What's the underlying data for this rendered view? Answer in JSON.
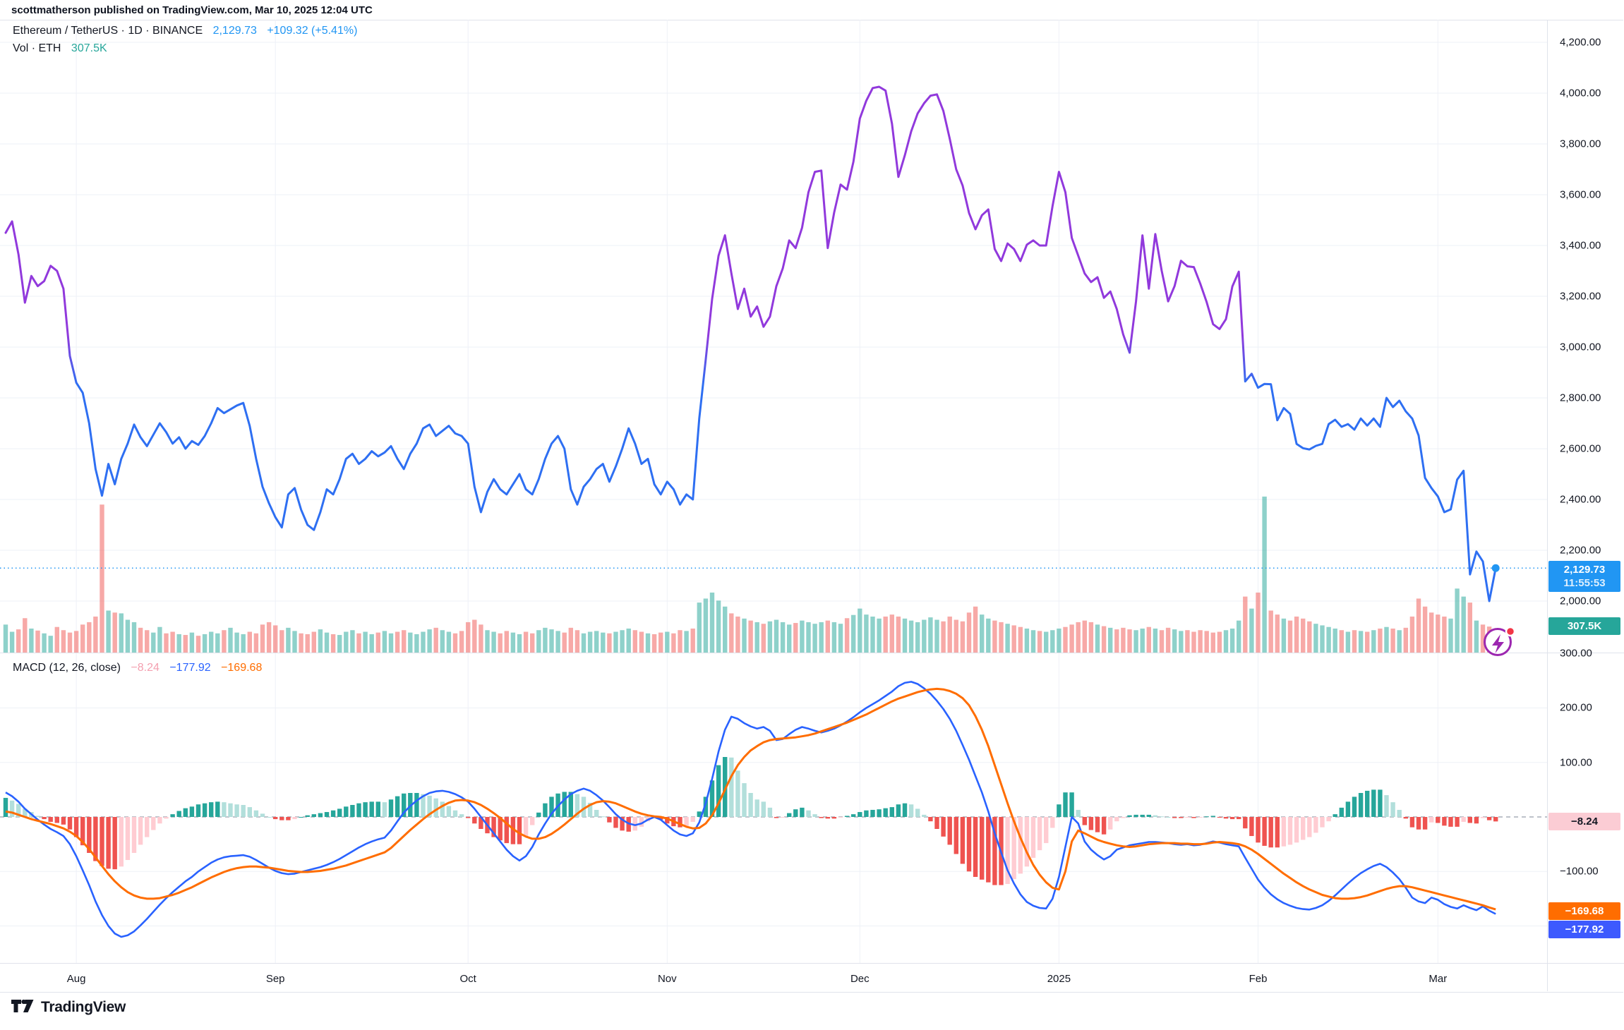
{
  "attribution": "scottmatherson published on TradingView.com, Mar 10, 2025 12:04 UTC",
  "symbol_legend": {
    "title": "Ethereum / TetherUS · 1D · BINANCE",
    "price": "2,129.73",
    "change": "+109.32 (+5.41%)"
  },
  "volume_legend": {
    "label": "Vol · ETH",
    "value": "307.5K"
  },
  "macd_legend": {
    "label": "MACD (12, 26, close)",
    "hist_value": "−8.24",
    "macd_value": "−177.92",
    "signal_value": "−169.68"
  },
  "badges": {
    "last_price": "2,129.73",
    "countdown": "11:55:53",
    "volume": "307.5K",
    "hist": "−8.24",
    "signal": "−169.68",
    "macd": "−177.92"
  },
  "logo_text": "TradingView",
  "chart_data": {
    "type": "line",
    "title": "Ethereum / TetherUS 1D BINANCE with volume and MACD(12,26,close)",
    "last_price": 2129.73,
    "last_volume_k": 307.5,
    "price_axis_ticks": [
      4200,
      4000,
      3800,
      3600,
      3400,
      3200,
      3000,
      2800,
      2600,
      2400,
      2200,
      2000
    ],
    "macd_axis_ticks": [
      300,
      200,
      100,
      -100
    ],
    "x_axis_labels": [
      {
        "label": "Aug",
        "day": 11
      },
      {
        "label": "Sep",
        "day": 42
      },
      {
        "label": "Oct",
        "day": 72
      },
      {
        "label": "Nov",
        "day": 103
      },
      {
        "label": "Dec",
        "day": 133
      },
      {
        "label": "2025",
        "day": 164
      },
      {
        "label": "Feb",
        "day": 195
      },
      {
        "label": "Mar",
        "day": 223
      }
    ],
    "colors": {
      "line_blue": "#2e6ff2",
      "line_purple": "#9139dc",
      "price_dot": "#2196f3",
      "vol_up": "rgba(38,166,154,0.52)",
      "vol_down": "rgba(239,83,80,0.5)",
      "macd_line": "#2962ff",
      "signal_line": "#ff6d00",
      "hist_up": "#26a69a",
      "hist_up_fade": "#b2dfdb",
      "hist_down": "#ef5350",
      "hist_down_fade": "#ffccd2",
      "grid": "#eef1f7",
      "zero_dash": "#a9adb8"
    },
    "price_series": [
      3450,
      3495,
      3365,
      3175,
      3280,
      3240,
      3260,
      3320,
      3300,
      3230,
      2965,
      2860,
      2820,
      2700,
      2520,
      2415,
      2540,
      2460,
      2560,
      2620,
      2695,
      2645,
      2610,
      2655,
      2700,
      2665,
      2620,
      2645,
      2600,
      2630,
      2615,
      2650,
      2700,
      2760,
      2740,
      2755,
      2770,
      2780,
      2690,
      2560,
      2450,
      2385,
      2330,
      2290,
      2420,
      2445,
      2360,
      2300,
      2280,
      2350,
      2440,
      2420,
      2480,
      2560,
      2580,
      2540,
      2560,
      2590,
      2570,
      2585,
      2610,
      2560,
      2520,
      2580,
      2620,
      2680,
      2695,
      2650,
      2670,
      2690,
      2660,
      2650,
      2620,
      2450,
      2350,
      2430,
      2480,
      2440,
      2420,
      2460,
      2500,
      2440,
      2420,
      2480,
      2560,
      2620,
      2650,
      2600,
      2440,
      2380,
      2450,
      2480,
      2520,
      2540,
      2470,
      2530,
      2600,
      2680,
      2620,
      2540,
      2560,
      2460,
      2420,
      2470,
      2440,
      2380,
      2420,
      2400,
      2720,
      2950,
      3190,
      3360,
      3440,
      3290,
      3150,
      3230,
      3120,
      3160,
      3080,
      3120,
      3240,
      3310,
      3420,
      3390,
      3470,
      3610,
      3690,
      3695,
      3390,
      3530,
      3640,
      3620,
      3730,
      3900,
      3970,
      4020,
      4025,
      4010,
      3880,
      3670,
      3755,
      3850,
      3920,
      3960,
      3990,
      3995,
      3930,
      3820,
      3700,
      3636,
      3528,
      3464,
      3519,
      3542,
      3386,
      3339,
      3408,
      3386,
      3339,
      3403,
      3420,
      3400,
      3400,
      3555,
      3690,
      3610,
      3430,
      3360,
      3290,
      3256,
      3275,
      3194,
      3219,
      3150,
      3050,
      2978,
      3180,
      3440,
      3230,
      3445,
      3300,
      3180,
      3240,
      3340,
      3318,
      3315,
      3250,
      3177,
      3090,
      3071,
      3110,
      3239,
      3297,
      2865,
      2895,
      2840,
      2855,
      2854,
      2712,
      2760,
      2737,
      2619,
      2602,
      2597,
      2611,
      2619,
      2697,
      2714,
      2686,
      2697,
      2675,
      2719,
      2691,
      2719,
      2686,
      2800,
      2764,
      2789,
      2747,
      2719,
      2652,
      2485,
      2445,
      2412,
      2350,
      2361,
      2478,
      2513,
      2105,
      2195,
      2156,
      2000,
      2129.73
    ],
    "volume_k": [
      700,
      520,
      580,
      860,
      600,
      550,
      480,
      420,
      640,
      560,
      500,
      540,
      700,
      760,
      900,
      3700,
      1050,
      1000,
      980,
      820,
      760,
      620,
      560,
      500,
      640,
      480,
      520,
      460,
      440,
      500,
      420,
      460,
      520,
      480,
      560,
      620,
      500,
      460,
      520,
      480,
      700,
      760,
      680,
      560,
      620,
      540,
      480,
      460,
      520,
      580,
      500,
      460,
      440,
      520,
      560,
      480,
      520,
      460,
      500,
      540,
      480,
      520,
      560,
      500,
      460,
      520,
      580,
      620,
      560,
      520,
      480,
      540,
      760,
      820,
      700,
      560,
      520,
      480,
      540,
      500,
      460,
      520,
      480,
      560,
      620,
      580,
      540,
      500,
      620,
      560,
      480,
      520,
      540,
      500,
      480,
      520,
      560,
      600,
      560,
      520,
      480,
      460,
      500,
      520,
      480,
      560,
      540,
      600,
      1250,
      1350,
      1500,
      1300,
      1150,
      980,
      900,
      850,
      800,
      760,
      720,
      780,
      820,
      760,
      700,
      740,
      800,
      760,
      720,
      760,
      800,
      760,
      720,
      860,
      940,
      1100,
      950,
      900,
      850,
      900,
      950,
      900,
      850,
      800,
      760,
      820,
      880,
      820,
      780,
      900,
      820,
      780,
      1000,
      1150,
      950,
      850,
      800,
      760,
      720,
      680,
      640,
      600,
      560,
      540,
      520,
      560,
      600,
      640,
      700,
      760,
      800,
      760,
      700,
      660,
      620,
      580,
      620,
      580,
      560,
      600,
      640,
      600,
      560,
      620,
      580,
      540,
      560,
      520,
      560,
      540,
      500,
      520,
      560,
      600,
      800,
      1400,
      1100,
      1500,
      3900,
      1050,
      950,
      850,
      800,
      900,
      850,
      780,
      720,
      680,
      640,
      600,
      560,
      520,
      560,
      540,
      520,
      560,
      600,
      640,
      600,
      560,
      620,
      900,
      1350,
      1150,
      1000,
      950,
      900,
      850,
      1600,
      1400,
      1250,
      800,
      700,
      650,
      308
    ],
    "macd_line": [
      45,
      38,
      28,
      15,
      5,
      -5,
      -14,
      -22,
      -28,
      -35,
      -50,
      -72,
      -98,
      -125,
      -155,
      -180,
      -200,
      -214,
      -220,
      -217,
      -210,
      -199,
      -187,
      -174,
      -161,
      -149,
      -138,
      -128,
      -118,
      -110,
      -100,
      -92,
      -84,
      -78,
      -74,
      -72,
      -71,
      -70,
      -73,
      -79,
      -86,
      -93,
      -99,
      -103,
      -105,
      -104,
      -101,
      -98,
      -95,
      -92,
      -88,
      -83,
      -77,
      -70,
      -63,
      -56,
      -50,
      -45,
      -41,
      -38,
      -25,
      -8,
      8,
      20,
      30,
      38,
      44,
      47,
      48,
      46,
      42,
      36,
      28,
      15,
      0,
      -15,
      -30,
      -45,
      -60,
      -72,
      -80,
      -72,
      -55,
      -32,
      -12,
      6,
      20,
      32,
      42,
      48,
      52,
      48,
      40,
      30,
      18,
      5,
      -5,
      -12,
      -15,
      -12,
      -5,
      0,
      -5,
      -15,
      -25,
      -32,
      -35,
      -30,
      -10,
      25,
      70,
      120,
      160,
      184,
      180,
      172,
      166,
      162,
      165,
      158,
      141,
      143,
      152,
      160,
      165,
      162,
      158,
      155,
      158,
      162,
      168,
      175,
      183,
      192,
      200,
      207,
      214,
      222,
      230,
      240,
      246,
      248,
      244,
      236,
      226,
      213,
      198,
      180,
      158,
      132,
      105,
      75,
      45,
      10,
      -30,
      -65,
      -98,
      -122,
      -142,
      -156,
      -163,
      -167,
      -168,
      -150,
      -110,
      -55,
      0,
      -12,
      -45,
      -60,
      -70,
      -78,
      -72,
      -60,
      -56,
      -52,
      -50,
      -48,
      -46,
      -46,
      -47,
      -48,
      -50,
      -51,
      -50,
      -52,
      -51,
      -48,
      -45,
      -47,
      -50,
      -52,
      -54,
      -75,
      -95,
      -115,
      -130,
      -142,
      -151,
      -158,
      -163,
      -167,
      -169,
      -170,
      -167,
      -162,
      -154,
      -144,
      -133,
      -122,
      -112,
      -103,
      -96,
      -90,
      -86,
      -92,
      -102,
      -114,
      -130,
      -148,
      -155,
      -158,
      -148,
      -152,
      -160,
      -165,
      -168,
      -162,
      -167,
      -171,
      -164,
      -172,
      -177.92
    ],
    "signal_line": [
      10,
      8,
      4,
      0,
      -4,
      -7,
      -10,
      -13,
      -17,
      -21,
      -27,
      -35,
      -46,
      -59,
      -74,
      -90,
      -105,
      -118,
      -129,
      -138,
      -144,
      -148,
      -150,
      -150,
      -149,
      -146,
      -143,
      -139,
      -134,
      -129,
      -123,
      -117,
      -111,
      -106,
      -101,
      -97,
      -94,
      -92,
      -91,
      -91,
      -92,
      -93,
      -95,
      -97,
      -99,
      -100,
      -101,
      -101,
      -100,
      -99,
      -97,
      -95,
      -92,
      -89,
      -85,
      -81,
      -77,
      -73,
      -69,
      -65,
      -57,
      -46,
      -35,
      -24,
      -14,
      -4,
      5,
      13,
      20,
      26,
      30,
      31,
      30,
      27,
      22,
      15,
      7,
      -2,
      -12,
      -22,
      -30,
      -36,
      -40,
      -40,
      -37,
      -31,
      -23,
      -14,
      -4,
      6,
      15,
      22,
      27,
      29,
      28,
      25,
      20,
      15,
      10,
      6,
      3,
      1,
      0,
      -3,
      -8,
      -13,
      -18,
      -21,
      -20,
      -12,
      3,
      25,
      50,
      75,
      95,
      110,
      122,
      130,
      137,
      141,
      143,
      144,
      145,
      146,
      148,
      150,
      153,
      157,
      161,
      165,
      169,
      173,
      178,
      183,
      188,
      194,
      200,
      206,
      212,
      217,
      221,
      225,
      229,
      232,
      234,
      235,
      234,
      231,
      226,
      218,
      205,
      185,
      160,
      130,
      95,
      60,
      25,
      -8,
      -38,
      -65,
      -88,
      -106,
      -120,
      -130,
      -133,
      -100,
      -45,
      -25,
      -30,
      -36,
      -42,
      -46,
      -49,
      -52,
      -54,
      -55,
      -54,
      -52,
      -50,
      -49,
      -48,
      -48,
      -48,
      -49,
      -49,
      -50,
      -50,
      -49,
      -47,
      -46,
      -47,
      -48,
      -50,
      -54,
      -60,
      -68,
      -77,
      -86,
      -95,
      -104,
      -112,
      -120,
      -127,
      -133,
      -138,
      -143,
      -146,
      -149,
      -150,
      -150,
      -149,
      -147,
      -144,
      -140,
      -136,
      -132,
      -129,
      -127,
      -127,
      -129,
      -132,
      -135,
      -138,
      -141,
      -144,
      -147,
      -150,
      -153,
      -156,
      -159,
      -162,
      -166,
      -169.68
    ]
  }
}
